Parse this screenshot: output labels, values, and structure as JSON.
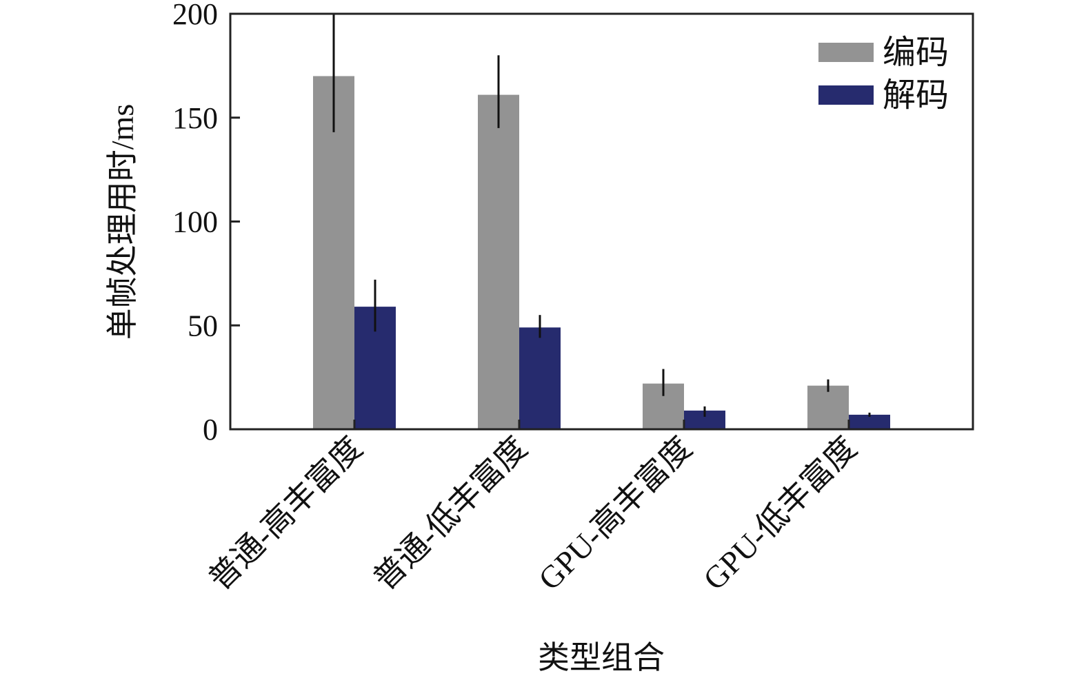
{
  "chart_data": {
    "type": "bar",
    "title": "",
    "xlabel": "类型组合",
    "ylabel": "单帧处理用时/ms",
    "ylim": [
      0,
      200
    ],
    "yticks": [
      0,
      50,
      100,
      150,
      200
    ],
    "grid": false,
    "legend_position": "top-right",
    "categories": [
      "普通-高丰富度",
      "普通-低丰富度",
      "GPU-高丰富度",
      "GPU-低丰富度"
    ],
    "series": [
      {
        "name": "编码",
        "color": "#939393",
        "values": [
          170,
          161,
          22,
          21
        ],
        "error_low": [
          143,
          145,
          16,
          18
        ],
        "error_high": [
          200,
          180,
          29,
          24
        ]
      },
      {
        "name": "解码",
        "color": "#262b6e",
        "values": [
          59,
          49,
          9,
          7
        ],
        "error_low": [
          47,
          44,
          6,
          6
        ],
        "error_high": [
          72,
          55,
          11,
          8
        ]
      }
    ]
  }
}
